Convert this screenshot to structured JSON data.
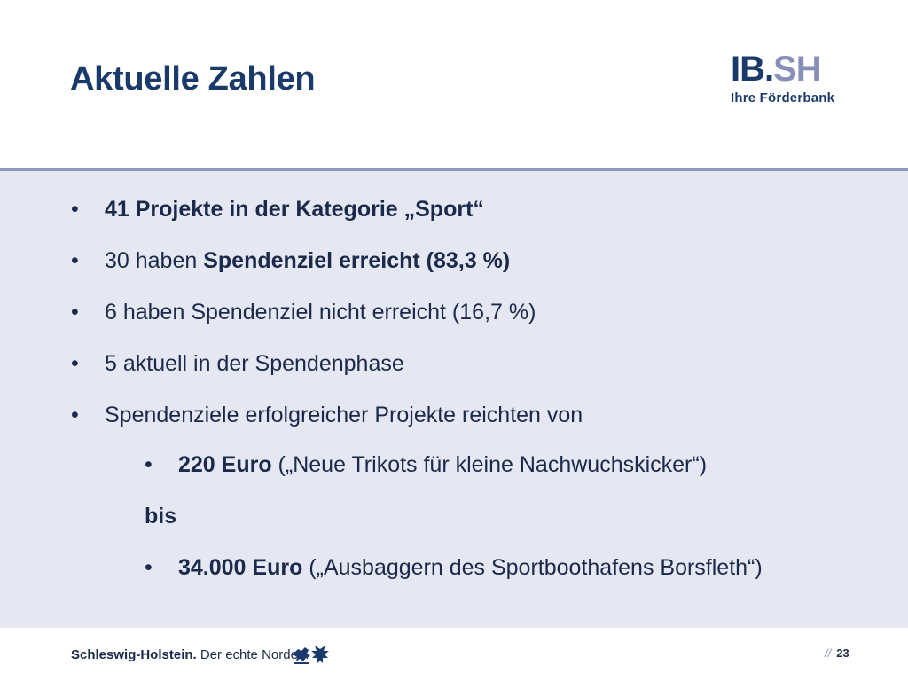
{
  "header": {
    "title": "Aktuelle Zahlen",
    "logo": {
      "ib": "IB",
      "dot": ".",
      "sh": "SH",
      "subtitle": "Ihre Förderbank"
    }
  },
  "bullets": [
    {
      "parts": [
        {
          "text": "41 Projekte in der Kategorie „Sport“",
          "bold": true
        }
      ]
    },
    {
      "parts": [
        {
          "text": "30 haben ",
          "bold": false
        },
        {
          "text": "Spendenziel erreicht (83,3 %)",
          "bold": true
        }
      ]
    },
    {
      "parts": [
        {
          "text": "6 haben Spendenziel nicht erreicht (16,7 %)",
          "bold": false
        }
      ]
    },
    {
      "parts": [
        {
          "text": "5 aktuell in der Spendenphase",
          "bold": false
        }
      ]
    },
    {
      "parts": [
        {
          "text": "Spendenziele erfolgreicher Projekte reichten von",
          "bold": false
        }
      ]
    }
  ],
  "range": {
    "from": {
      "amount": "220 Euro",
      "project": " („Neue Trikots für kleine Nachwuchskicker“)"
    },
    "connector": "bis",
    "to": {
      "amount": "34.000 Euro",
      "project": " („Ausbaggern des Sportboothafens Borsfleth“)"
    }
  },
  "bullet_glyph": "•",
  "footer": {
    "region_bold": "Schleswig-Holstein.",
    "region_slogan": " Der echte Norden.",
    "crest_icon": "schleswig-holstein-crest-icon",
    "page_separator": "//",
    "page_number": "23"
  },
  "colors": {
    "title": "#1a3a6b",
    "logo_light": "#8690b8",
    "content_background": "#e5e7f2",
    "divider": "#8e98bd",
    "text": "#1b2a4a"
  }
}
